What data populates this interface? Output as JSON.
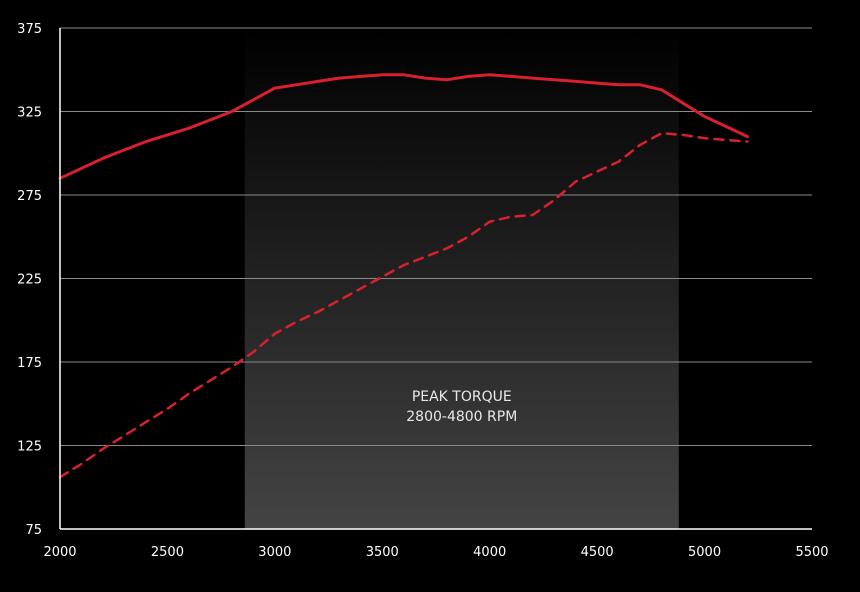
{
  "chart_data": {
    "type": "line",
    "title": "",
    "xlabel": "",
    "ylabel": "",
    "xlim": [
      2000,
      5500
    ],
    "ylim": [
      75,
      375
    ],
    "x_ticks": [
      2000,
      2500,
      3000,
      3500,
      4000,
      4500,
      5000,
      5500
    ],
    "y_ticks": [
      75,
      125,
      175,
      225,
      275,
      325,
      375
    ],
    "grid": true,
    "band": {
      "x_start": 2860,
      "x_end": 4880,
      "label_line1": "PEAK TORQUE",
      "label_line2": "2800-4800 RPM"
    },
    "series": [
      {
        "style": "solid",
        "color": "#d8202f",
        "points": [
          [
            2000,
            285
          ],
          [
            2100,
            291
          ],
          [
            2200,
            297
          ],
          [
            2300,
            302
          ],
          [
            2400,
            307
          ],
          [
            2500,
            311
          ],
          [
            2600,
            315
          ],
          [
            2700,
            320
          ],
          [
            2800,
            325
          ],
          [
            2900,
            332
          ],
          [
            3000,
            339
          ],
          [
            3100,
            341
          ],
          [
            3200,
            343
          ],
          [
            3300,
            345
          ],
          [
            3400,
            346
          ],
          [
            3500,
            347
          ],
          [
            3600,
            347
          ],
          [
            3700,
            345
          ],
          [
            3800,
            344
          ],
          [
            3900,
            346
          ],
          [
            4000,
            347
          ],
          [
            4100,
            346
          ],
          [
            4200,
            345
          ],
          [
            4300,
            344
          ],
          [
            4400,
            343
          ],
          [
            4500,
            342
          ],
          [
            4600,
            341
          ],
          [
            4700,
            341
          ],
          [
            4800,
            338
          ],
          [
            4900,
            330
          ],
          [
            5000,
            322
          ],
          [
            5100,
            316
          ],
          [
            5200,
            310
          ]
        ]
      },
      {
        "style": "dashed",
        "color": "#d8202f",
        "points": [
          [
            2000,
            106
          ],
          [
            2100,
            114
          ],
          [
            2200,
            123
          ],
          [
            2300,
            131
          ],
          [
            2400,
            139
          ],
          [
            2500,
            147
          ],
          [
            2600,
            156
          ],
          [
            2700,
            164
          ],
          [
            2800,
            172
          ],
          [
            2900,
            181
          ],
          [
            3000,
            192
          ],
          [
            3100,
            199
          ],
          [
            3200,
            205
          ],
          [
            3300,
            212
          ],
          [
            3400,
            219
          ],
          [
            3500,
            226
          ],
          [
            3600,
            233
          ],
          [
            3700,
            238
          ],
          [
            3800,
            243
          ],
          [
            3900,
            250
          ],
          [
            4000,
            259
          ],
          [
            4100,
            262
          ],
          [
            4200,
            263
          ],
          [
            4300,
            272
          ],
          [
            4400,
            283
          ],
          [
            4500,
            289
          ],
          [
            4600,
            295
          ],
          [
            4700,
            305
          ],
          [
            4800,
            312
          ],
          [
            4900,
            311
          ],
          [
            5000,
            309
          ],
          [
            5100,
            308
          ],
          [
            5200,
            307
          ]
        ]
      }
    ]
  }
}
